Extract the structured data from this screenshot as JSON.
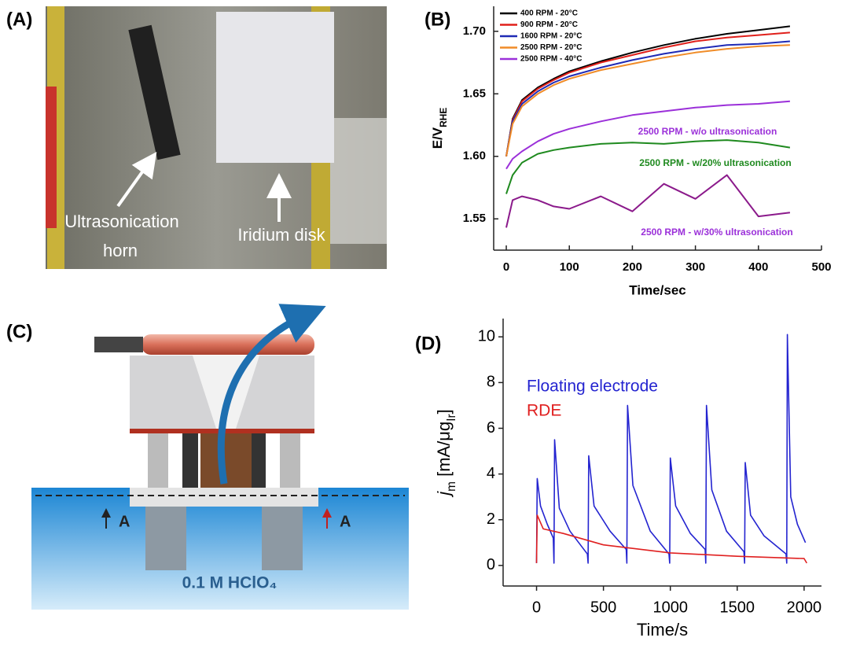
{
  "panel_labels": [
    "(A)",
    "(B)",
    "(C)",
    "(D)"
  ],
  "photo": {
    "labels": [
      "Ultrasonication",
      "horn",
      "Iridium disk"
    ]
  },
  "diagram": {
    "labels": [
      "A",
      "A",
      "0.1 M HClO₄"
    ]
  },
  "chart_data": [
    {
      "type": "line",
      "xlabel": "Time/sec",
      "ylabel_parts": [
        "E/V",
        "RHE"
      ],
      "xlim": [
        -20,
        500
      ],
      "ylim": [
        1.525,
        1.72
      ],
      "xticks": [
        0,
        100,
        200,
        300,
        400,
        500
      ],
      "yticks": [
        1.55,
        {
          "value": 1.6,
          "label": "1.60"
        },
        1.65,
        {
          "value": 1.7,
          "label": "1.70"
        }
      ],
      "legend": "upper left",
      "legend_style": "lines",
      "x": [
        0,
        10,
        25,
        50,
        75,
        100,
        150,
        200,
        250,
        300,
        350,
        400,
        450
      ],
      "series": [
        {
          "name": "400  RPM - 20°C",
          "color": "#000000",
          "values": [
            1.6,
            1.63,
            1.645,
            1.655,
            1.662,
            1.668,
            1.676,
            1.683,
            1.689,
            1.694,
            1.698,
            1.701,
            1.704
          ]
        },
        {
          "name": "900  RPM - 20°C",
          "color": "#e0201b",
          "values": [
            1.6,
            1.629,
            1.644,
            1.654,
            1.661,
            1.667,
            1.675,
            1.681,
            1.687,
            1.692,
            1.695,
            1.697,
            1.699
          ]
        },
        {
          "name": "1600 RPM - 20°C",
          "color": "#1f2ab5",
          "values": [
            1.6,
            1.628,
            1.642,
            1.652,
            1.659,
            1.664,
            1.671,
            1.677,
            1.682,
            1.686,
            1.689,
            1.69,
            1.692
          ]
        },
        {
          "name": "2500 RPM - 20°C",
          "color": "#f08c28",
          "values": [
            1.6,
            1.626,
            1.64,
            1.65,
            1.657,
            1.662,
            1.669,
            1.674,
            1.679,
            1.683,
            1.686,
            1.688,
            1.689
          ]
        },
        {
          "name": "2500 RPM - 40°C",
          "color": "#9b30d9",
          "values": [
            1.59,
            1.598,
            1.604,
            1.612,
            1.618,
            1.622,
            1.628,
            1.633,
            1.636,
            1.639,
            1.641,
            1.642,
            1.644
          ]
        },
        {
          "color": "#1f8a1f",
          "values": [
            1.57,
            1.585,
            1.595,
            1.602,
            1.605,
            1.607,
            1.61,
            1.611,
            1.61,
            1.612,
            1.613,
            1.611,
            1.607
          ]
        },
        {
          "color": "#8b1a8b",
          "values": [
            1.543,
            1.565,
            1.568,
            1.565,
            1.56,
            1.558,
            1.568,
            1.556,
            1.578,
            1.566,
            1.585,
            1.552,
            1.555
          ]
        }
      ],
      "annotations": [
        {
          "text": "2500 RPM - w/o ultrasonication",
          "color": "#9b30d9"
        },
        {
          "text": "2500 RPM - w/20% ultrasonication",
          "color": "#1f8a1f"
        },
        {
          "text": "2500 RPM - w/30% ultrasonication",
          "color": "#9b30d9"
        }
      ]
    },
    {
      "type": "line",
      "xlabel": "Time/s",
      "ylabel_parts": [
        "j",
        "m",
        " [mA/μg",
        "Ir",
        "]"
      ],
      "xlim": [
        -250,
        2130
      ],
      "ylim": [
        -0.9,
        10.8
      ],
      "xticks": [
        0,
        500,
        1000,
        1500,
        2000
      ],
      "yticks": [
        0,
        2,
        4,
        6,
        8,
        10
      ],
      "legend": "upper left",
      "legend_style": "text",
      "series": [
        {
          "name": "Floating electrode",
          "color": "#2424d0",
          "x": [
            0,
            5,
            30,
            80,
            125,
            130,
            135,
            170,
            250,
            380,
            385,
            390,
            430,
            550,
            670,
            675,
            680,
            720,
            850,
            990,
            995,
            1000,
            1040,
            1150,
            1260,
            1265,
            1270,
            1310,
            1420,
            1550,
            1555,
            1560,
            1600,
            1700,
            1865,
            1870,
            1875,
            1900,
            1950,
            2010
          ],
          "values": [
            0.1,
            3.8,
            2.6,
            1.8,
            1.2,
            0.1,
            5.5,
            2.5,
            1.5,
            0.5,
            0.1,
            4.8,
            2.6,
            1.5,
            0.7,
            0.1,
            7.0,
            3.5,
            1.5,
            0.5,
            0.1,
            4.7,
            2.6,
            1.4,
            0.7,
            0.1,
            7.0,
            3.3,
            1.5,
            0.6,
            0.1,
            4.5,
            2.2,
            1.3,
            0.5,
            0.1,
            10.1,
            3.0,
            1.8,
            1.0
          ]
        },
        {
          "name": "RDE",
          "color": "#e02020",
          "x": [
            0,
            5,
            50,
            200,
            500,
            1000,
            1500,
            2000,
            2020
          ],
          "values": [
            0.1,
            2.2,
            1.6,
            1.4,
            0.9,
            0.55,
            0.4,
            0.3,
            0.1
          ]
        }
      ]
    }
  ]
}
